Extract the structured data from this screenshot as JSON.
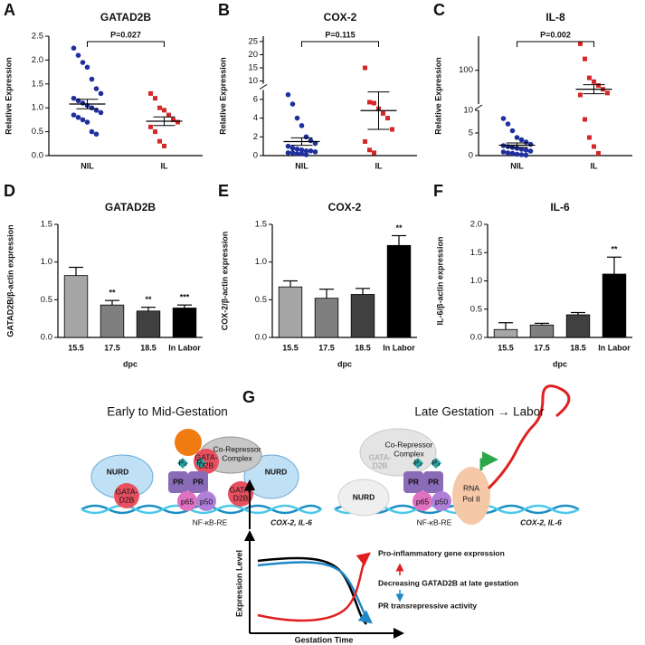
{
  "chart_data": [
    {
      "type": "dotplot",
      "label": "A",
      "title": "GATAD2B",
      "ylabel": "Relative Expression",
      "annotation": "P=0.027",
      "categories": [
        "NIL",
        "IL"
      ],
      "groups": [
        {
          "color": "#1f2f9e",
          "values": [
            2.25,
            2.1,
            1.95,
            1.85,
            1.6,
            1.4,
            1.3,
            1.2,
            1.15,
            1.1,
            1.05,
            1.0,
            0.95,
            0.9,
            0.85,
            0.8,
            0.75,
            0.7,
            0.5,
            0.45
          ],
          "mean": 1.08,
          "sem": 0.1
        },
        {
          "color": "#d62728",
          "values": [
            1.3,
            1.2,
            1.0,
            0.95,
            0.85,
            0.75,
            0.7,
            0.6,
            0.5,
            0.3,
            0.2
          ],
          "mean": 0.72,
          "sem": 0.09
        }
      ],
      "ylim": [
        0,
        2.5
      ],
      "yticks": [
        {
          "value": 0,
          "label": "0.0"
        },
        0.5,
        {
          "value": 1,
          "label": "1.0"
        },
        1.5,
        {
          "value": 2,
          "label": "2.0"
        },
        2.5
      ]
    },
    {
      "type": "dotplot",
      "label": "B",
      "title": "COX-2",
      "ylabel": "Relative Expression",
      "annotation": "P=0.115",
      "categories": [
        "NIL",
        "IL"
      ],
      "groups": [
        {
          "color": "#1f2f9e",
          "values": [
            6.5,
            5.5,
            4.0,
            3.2,
            2.0,
            1.6,
            1.3,
            1.0,
            0.8,
            0.7,
            0.6,
            0.5,
            0.5,
            0.4,
            0.3,
            0.3,
            0.2,
            0.2,
            0.1
          ],
          "mean": 1.5,
          "sem": 0.4
        },
        {
          "color": "#d62728",
          "values": [
            15,
            5.7,
            5.6,
            5.0,
            4.5,
            4.0,
            2.8,
            1.5,
            0.6,
            0.3
          ],
          "mean": 4.8,
          "sem": 2.0
        }
      ],
      "axis_segments": [
        {
          "ylim": [
            0,
            7
          ],
          "yticks": [
            0,
            2,
            4,
            6
          ]
        },
        {
          "ylim": [
            9,
            27
          ],
          "yticks": [
            10,
            15,
            20,
            25
          ]
        }
      ]
    },
    {
      "type": "dotplot",
      "label": "C",
      "title": "IL-8",
      "ylabel": "Relative Expression",
      "annotation": "P=0.002",
      "categories": [
        "NIL",
        "IL"
      ],
      "groups": [
        {
          "color": "#1f2f9e",
          "values": [
            8.2,
            7,
            5.5,
            4,
            3.5,
            3,
            2.5,
            2.2,
            2,
            1.8,
            1.6,
            1.4,
            1.2,
            1,
            0.8,
            0.6,
            0.5,
            0.3,
            0.2,
            0.1
          ],
          "mean": 2.3,
          "sem": 0.5
        },
        {
          "color": "#d62728",
          "values": [
            170,
            130,
            80,
            70,
            60,
            50,
            40,
            35,
            8,
            4,
            2,
            0.5
          ],
          "mean": 50,
          "sem": 12
        }
      ],
      "axis_segments": [
        {
          "ylim": [
            0,
            10
          ],
          "yticks": [
            0,
            5,
            10
          ]
        },
        {
          "ylim": [
            11,
            190
          ],
          "yticks": [
            100
          ]
        }
      ]
    },
    {
      "type": "bar",
      "label": "D",
      "title": "GATAD2B",
      "ylabel": "GATAD2B/β-actin expression",
      "xlabel": "dpc",
      "categories": [
        "15.5",
        "17.5",
        "18.5",
        "In Labor"
      ],
      "values": [
        0.82,
        0.43,
        0.35,
        0.39
      ],
      "errors": [
        0.11,
        0.06,
        0.05,
        0.04
      ],
      "annotations": [
        null,
        "**",
        "**",
        "***"
      ],
      "colors": [
        "#a6a6a6",
        "#7f7f7f",
        "#404040",
        "#000000"
      ],
      "ylim": [
        0,
        1.5
      ],
      "yticks": [
        {
          "value": 0,
          "label": "0.0"
        },
        0.5,
        {
          "value": 1,
          "label": "1.0"
        },
        1.5
      ]
    },
    {
      "type": "bar",
      "label": "E",
      "title": "COX-2",
      "ylabel": "COX-2/β-actin expression",
      "xlabel": "dpc",
      "categories": [
        "15.5",
        "17.5",
        "18.5",
        "In Labor"
      ],
      "values": [
        0.67,
        0.52,
        0.57,
        1.22
      ],
      "errors": [
        0.08,
        0.12,
        0.08,
        0.13
      ],
      "annotations": [
        null,
        null,
        null,
        "**"
      ],
      "colors": [
        "#a6a6a6",
        "#7f7f7f",
        "#404040",
        "#000000"
      ],
      "ylim": [
        0,
        1.5
      ],
      "yticks": [
        {
          "value": 0,
          "label": "0.0"
        },
        0.5,
        {
          "value": 1,
          "label": "1.0"
        },
        1.5
      ]
    },
    {
      "type": "bar",
      "label": "F",
      "title": "IL-6",
      "ylabel": "IL-6/β-actin expression",
      "xlabel": "dpc",
      "categories": [
        "15.5",
        "17.5",
        "18.5",
        "In Labor"
      ],
      "values": [
        0.14,
        0.22,
        0.4,
        1.12
      ],
      "errors": [
        0.12,
        0.03,
        0.04,
        0.3
      ],
      "annotations": [
        null,
        null,
        null,
        "**"
      ],
      "colors": [
        "#a6a6a6",
        "#7f7f7f",
        "#404040",
        "#000000"
      ],
      "ylim": [
        0,
        2
      ],
      "yticks": [
        {
          "value": 0,
          "label": "0.0"
        },
        0.5,
        {
          "value": 1,
          "label": "1.0"
        },
        1.5,
        {
          "value": 2,
          "label": "2.0"
        }
      ]
    }
  ],
  "diagram": {
    "label": "G",
    "left_title": "Early to Mid-Gestation",
    "right_title": "Late Gestation → Labor",
    "nurd": "NURD",
    "gata": [
      "GATA-",
      "D2B"
    ],
    "corepressor": [
      "Co-Repressor",
      "Complex"
    ],
    "pr": "PR",
    "p4": "P₄",
    "p65": "p65",
    "p50": "p50",
    "element": "NF-κB-RE",
    "genes": "COX-2, IL-6",
    "polymerase": [
      "RNA",
      "Pol II"
    ],
    "inset": {
      "ylabel": "Expression Level",
      "xlabel": "Gestation Time",
      "up": "Pro-inflammatory gene expression",
      "middle": "Decreasing GATAD2B at late gestation",
      "down": "PR transrepressive activity"
    }
  }
}
